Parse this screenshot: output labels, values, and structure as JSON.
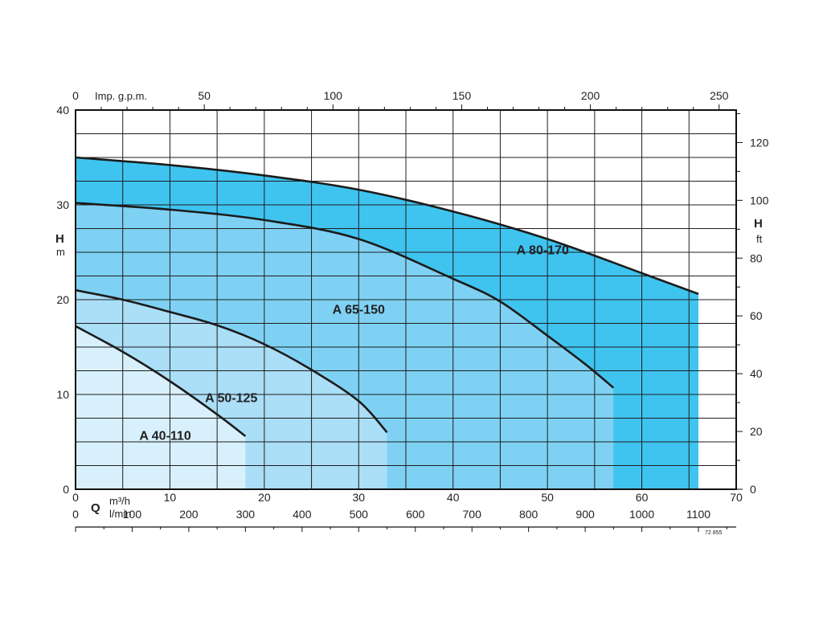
{
  "chart_data": {
    "type": "area",
    "title": "",
    "ylabel": {
      "letter": "H",
      "unit": "m"
    },
    "ylabel_right": {
      "letter": "H",
      "unit": "ft"
    },
    "xlabel": {
      "letter": "Q",
      "unit_primary": "m³/h",
      "unit_secondary": "l/min"
    },
    "x_unit_top": "Imp. g.p.m.",
    "xlim": [
      0,
      70
    ],
    "ylim": [
      0,
      40
    ],
    "grid": true,
    "primary_x_ticks": [
      "0",
      "10",
      "20",
      "30",
      "40",
      "50",
      "60",
      "70"
    ],
    "primary_y_ticks": [
      "0",
      "10",
      "20",
      "30",
      "40"
    ],
    "right_y_ticks": [
      "0",
      "20",
      "40",
      "60",
      "80",
      "100",
      "120"
    ],
    "top_x_ticks": [
      "0",
      "50",
      "100",
      "150",
      "200",
      "250"
    ],
    "bottom_lmin_ticks": [
      "0",
      "100",
      "200",
      "300",
      "400",
      "500",
      "600",
      "700",
      "800",
      "900",
      "1000",
      "1100"
    ],
    "series": [
      {
        "name": "A 80-170",
        "color": "#3fc4f0",
        "points": [
          [
            0,
            35
          ],
          [
            10,
            34.2
          ],
          [
            20,
            33.1
          ],
          [
            30,
            31.6
          ],
          [
            40,
            29.3
          ],
          [
            50,
            26.4
          ],
          [
            60,
            22.8
          ],
          [
            66,
            20.6
          ]
        ]
      },
      {
        "name": "A 65-150",
        "color": "#7fd1f4",
        "points": [
          [
            0,
            30.2
          ],
          [
            10,
            29.5
          ],
          [
            20,
            28.4
          ],
          [
            30,
            26.4
          ],
          [
            40,
            22.2
          ],
          [
            45,
            19.8
          ],
          [
            50,
            16.2
          ],
          [
            54,
            13.2
          ],
          [
            57,
            10.7
          ]
        ]
      },
      {
        "name": "A 50-125",
        "color": "#abdef7",
        "points": [
          [
            0,
            21
          ],
          [
            5,
            20
          ],
          [
            10,
            18.7
          ],
          [
            15,
            17.3
          ],
          [
            20,
            15.3
          ],
          [
            25,
            12.6
          ],
          [
            30,
            9.3
          ],
          [
            33,
            6
          ]
        ]
      },
      {
        "name": "A 40-110",
        "color": "#d8f0fb",
        "points": [
          [
            0,
            17.2
          ],
          [
            5,
            14.5
          ],
          [
            10,
            11.4
          ],
          [
            15,
            7.9
          ],
          [
            18,
            5.6
          ]
        ]
      }
    ],
    "annotation": "72 855"
  }
}
